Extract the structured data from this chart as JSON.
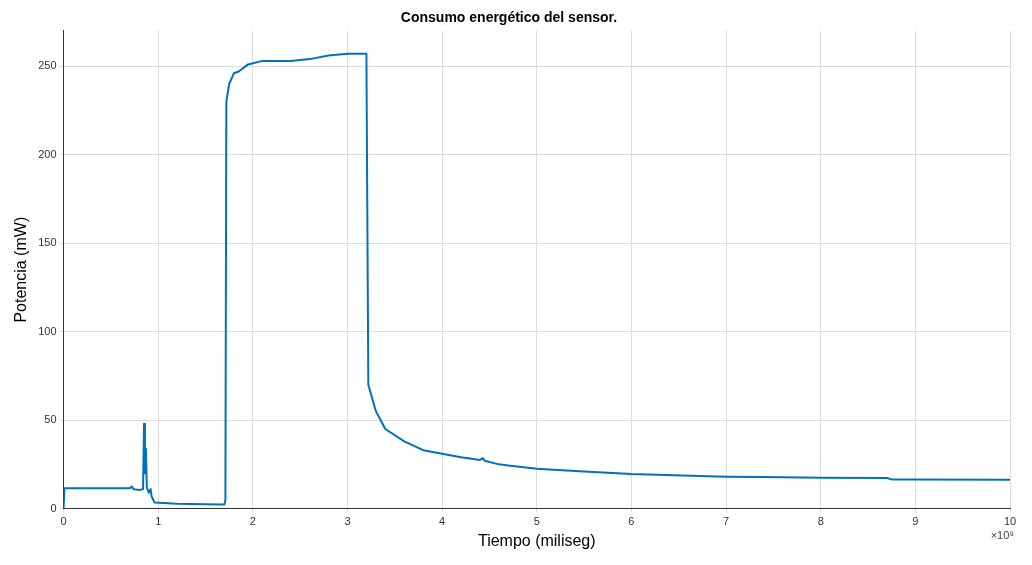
{
  "chart_data": {
    "type": "line",
    "title": "Consumo energético del sensor.",
    "xlabel": "Tiempo (miliseg)",
    "ylabel": "Potencia (mW)",
    "annotations": [
      "×10⁹"
    ],
    "x": [
      0,
      0.01,
      0.7,
      0.72,
      0.74,
      0.8,
      0.84,
      0.85,
      0.86,
      0.87,
      0.88,
      0.9,
      0.92,
      0.93,
      0.96,
      1.2,
      1.5,
      1.7,
      1.71,
      1.72,
      1.75,
      1.8,
      1.85,
      1.95,
      2.1,
      2.4,
      2.6,
      2.8,
      3.0,
      3.2,
      3.22,
      3.3,
      3.4,
      3.6,
      3.8,
      4.0,
      4.2,
      4.4,
      4.43,
      4.45,
      4.6,
      5,
      5.5,
      6,
      7,
      8,
      8.7,
      8.75,
      9,
      10
    ],
    "series": [
      {
        "color": "#0072bd",
        "values": [
          0,
          11.5,
          11.5,
          12.5,
          11,
          10.5,
          11,
          48,
          20,
          34,
          12,
          9,
          11,
          7,
          3.5,
          2.8,
          2.5,
          2.3,
          5,
          230,
          240,
          246,
          247,
          251,
          253,
          253,
          254,
          256,
          257,
          257,
          70,
          55,
          45,
          38,
          33,
          31,
          29,
          27.5,
          28.5,
          27,
          25,
          22.5,
          21,
          19.5,
          18,
          17.5,
          17.3,
          16.5,
          16.5,
          16.3
        ]
      }
    ],
    "xlim": [
      0,
      10
    ],
    "xticks": [
      0,
      1,
      2,
      3,
      4,
      5,
      6,
      7,
      8,
      9,
      10
    ],
    "ylim": [
      0,
      270
    ],
    "yticks": [
      0,
      50,
      100,
      150,
      200,
      250
    ],
    "grid": true,
    "legend": false,
    "marker": "none",
    "line_style": "solid"
  }
}
